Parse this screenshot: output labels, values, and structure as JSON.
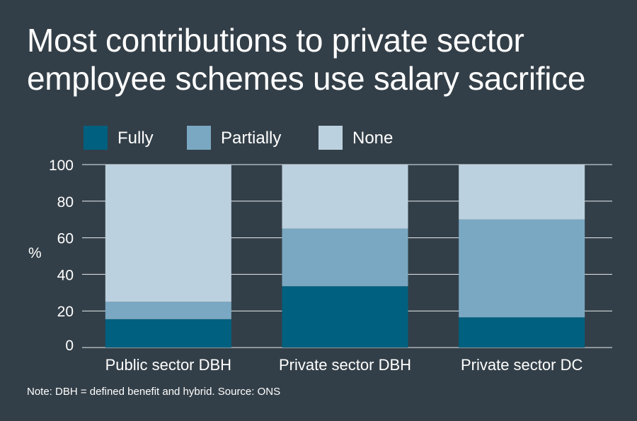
{
  "chart_data": {
    "type": "bar",
    "stacked": true,
    "title": "Most contributions to private sector employee schemes use salary sacrifice",
    "xlabel": "",
    "ylabel": "%",
    "ylim": [
      0,
      100
    ],
    "yticks": [
      0,
      20,
      40,
      60,
      80,
      100
    ],
    "grid": true,
    "legend_position": "top-left",
    "categories": [
      "Public sector DBH",
      "Private sector DBH",
      "Private sector DC"
    ],
    "series": [
      {
        "name": "Fully",
        "color": "#00607f",
        "values": [
          15.5,
          33.5,
          16.5
        ]
      },
      {
        "name": "Partially",
        "color": "#7aa8c2",
        "values": [
          9.5,
          31.5,
          53.5
        ]
      },
      {
        "name": "None",
        "color": "#bcd1df",
        "values": [
          75,
          35,
          30
        ]
      }
    ],
    "note": "Note: DBH = defined benefit and hybrid. Source: ONS"
  }
}
